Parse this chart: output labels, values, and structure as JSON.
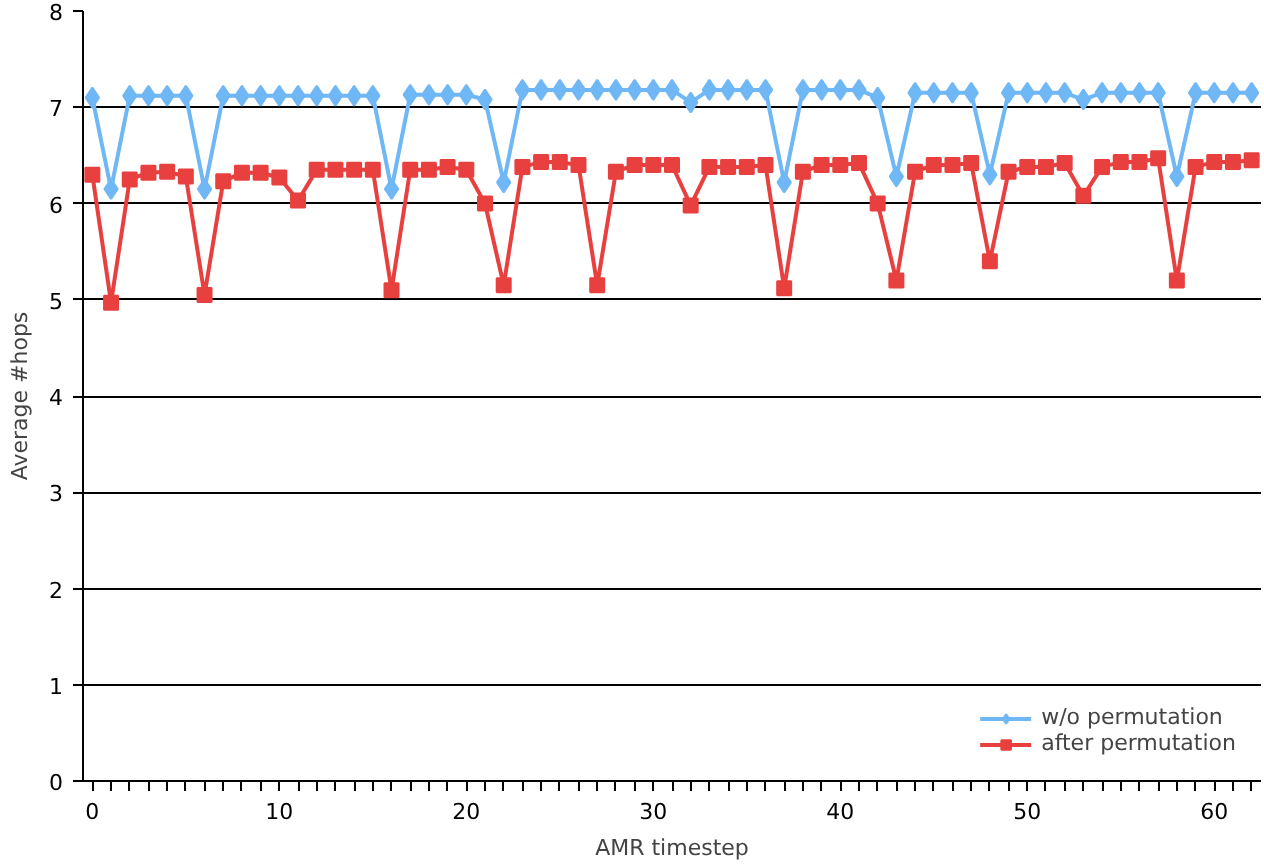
{
  "chart_data": {
    "type": "line",
    "xlabel": "AMR timestep",
    "ylabel": "Average #hops",
    "x": [
      0,
      1,
      2,
      3,
      4,
      5,
      6,
      7,
      8,
      9,
      10,
      11,
      12,
      13,
      14,
      15,
      16,
      17,
      18,
      19,
      20,
      21,
      22,
      23,
      24,
      25,
      26,
      27,
      28,
      29,
      30,
      31,
      32,
      33,
      34,
      35,
      36,
      37,
      38,
      39,
      40,
      41,
      42,
      43,
      44,
      45,
      46,
      47,
      48,
      49,
      50,
      51,
      52,
      53,
      54,
      55,
      56,
      57,
      58,
      59,
      60,
      61,
      62
    ],
    "series": [
      {
        "name": "w/o permutation",
        "color": "#6fb7f5",
        "marker": "diamond",
        "values": [
          7.1,
          6.15,
          7.12,
          7.12,
          7.12,
          7.12,
          6.15,
          7.12,
          7.12,
          7.12,
          7.12,
          7.12,
          7.12,
          7.12,
          7.12,
          7.12,
          6.15,
          7.13,
          7.13,
          7.13,
          7.13,
          7.08,
          6.22,
          7.18,
          7.18,
          7.18,
          7.18,
          7.18,
          7.18,
          7.18,
          7.18,
          7.18,
          7.05,
          7.18,
          7.18,
          7.18,
          7.18,
          6.22,
          7.18,
          7.18,
          7.18,
          7.18,
          7.1,
          6.28,
          7.15,
          7.15,
          7.15,
          7.15,
          6.3,
          7.15,
          7.15,
          7.15,
          7.15,
          7.08,
          7.15,
          7.15,
          7.15,
          7.15,
          6.28,
          7.15,
          7.15,
          7.15,
          7.15
        ]
      },
      {
        "name": "after permutation",
        "color": "#e8403f",
        "marker": "square",
        "values": [
          6.3,
          4.97,
          6.25,
          6.32,
          6.33,
          6.28,
          5.05,
          6.23,
          6.32,
          6.32,
          6.27,
          6.03,
          6.35,
          6.35,
          6.35,
          6.35,
          5.1,
          6.35,
          6.35,
          6.38,
          6.35,
          6.0,
          5.15,
          6.38,
          6.43,
          6.43,
          6.4,
          5.15,
          6.33,
          6.4,
          6.4,
          6.4,
          5.98,
          6.38,
          6.38,
          6.38,
          6.4,
          5.12,
          6.33,
          6.4,
          6.4,
          6.42,
          6.0,
          5.2,
          6.33,
          6.4,
          6.4,
          6.42,
          5.4,
          6.33,
          6.38,
          6.38,
          6.42,
          6.08,
          6.38,
          6.43,
          6.43,
          6.47,
          5.2,
          6.38,
          6.43,
          6.43,
          6.45
        ]
      }
    ],
    "xlim": [
      -0.5,
      62.5
    ],
    "xticks": [
      0,
      10,
      20,
      30,
      40,
      50,
      60
    ],
    "ylim": [
      0,
      8
    ],
    "yticks": [
      0,
      1,
      2,
      3,
      4,
      5,
      6,
      7,
      8
    ],
    "grid": "y",
    "legend": "bottom right"
  }
}
